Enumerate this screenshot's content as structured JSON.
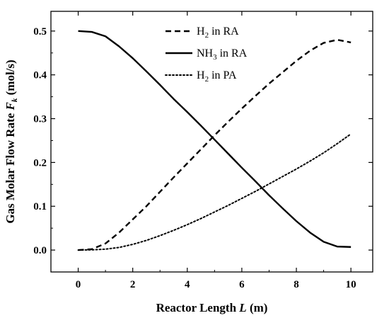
{
  "chart_data": {
    "type": "line",
    "title": "",
    "xlabel": {
      "text": "Reactor Length ",
      "italic": "L",
      "unit": " (m)"
    },
    "ylabel": {
      "text": "Gas Molar Flow Rate ",
      "italic": "F",
      "sub": "k",
      "unit": " (mol/s)"
    },
    "xlim": [
      -1,
      10.8
    ],
    "ylim": [
      -0.05,
      0.545
    ],
    "xticks": [
      0,
      2,
      4,
      6,
      8,
      10
    ],
    "yticks": [
      0.0,
      0.1,
      0.2,
      0.3,
      0.4,
      0.5
    ],
    "xtick_labels": [
      "0",
      "2",
      "4",
      "6",
      "8",
      "10"
    ],
    "ytick_labels": [
      "0.0",
      "0.1",
      "0.2",
      "0.3",
      "0.4",
      "0.5"
    ],
    "grid": false,
    "legend_position": "top-center",
    "series": [
      {
        "label_parts": [
          "H",
          "2",
          " in RA"
        ],
        "style": "dashed",
        "x": [
          0,
          0.5,
          1,
          1.5,
          2,
          2.5,
          3,
          3.5,
          4,
          4.5,
          5,
          5.5,
          6,
          6.5,
          7,
          7.5,
          8,
          8.5,
          9,
          9.5,
          10
        ],
        "y": [
          0.0,
          0.002,
          0.015,
          0.04,
          0.07,
          0.1,
          0.133,
          0.166,
          0.198,
          0.23,
          0.262,
          0.293,
          0.323,
          0.352,
          0.38,
          0.406,
          0.432,
          0.455,
          0.473,
          0.48,
          0.474
        ]
      },
      {
        "label_parts": [
          "NH",
          "3",
          " in RA"
        ],
        "style": "solid",
        "x": [
          0,
          0.5,
          1,
          1.5,
          2,
          2.5,
          3,
          3.5,
          4,
          4.5,
          5,
          5.5,
          6,
          6.5,
          7,
          7.5,
          8,
          8.5,
          9,
          9.5,
          10
        ],
        "y": [
          0.5,
          0.498,
          0.488,
          0.465,
          0.438,
          0.408,
          0.377,
          0.345,
          0.315,
          0.284,
          0.252,
          0.22,
          0.188,
          0.157,
          0.125,
          0.095,
          0.066,
          0.04,
          0.019,
          0.008,
          0.007
        ]
      },
      {
        "label_parts": [
          "H",
          "2",
          " in PA"
        ],
        "style": "dotted",
        "x": [
          0,
          0.5,
          1,
          1.5,
          2,
          2.5,
          3,
          3.5,
          4,
          4.5,
          5,
          5.5,
          6,
          6.5,
          7,
          7.5,
          8,
          8.5,
          9,
          9.5,
          10
        ],
        "y": [
          0.0,
          0.0005,
          0.002,
          0.006,
          0.013,
          0.022,
          0.033,
          0.045,
          0.058,
          0.072,
          0.087,
          0.102,
          0.118,
          0.134,
          0.151,
          0.168,
          0.185,
          0.203,
          0.222,
          0.243,
          0.265
        ]
      }
    ]
  }
}
